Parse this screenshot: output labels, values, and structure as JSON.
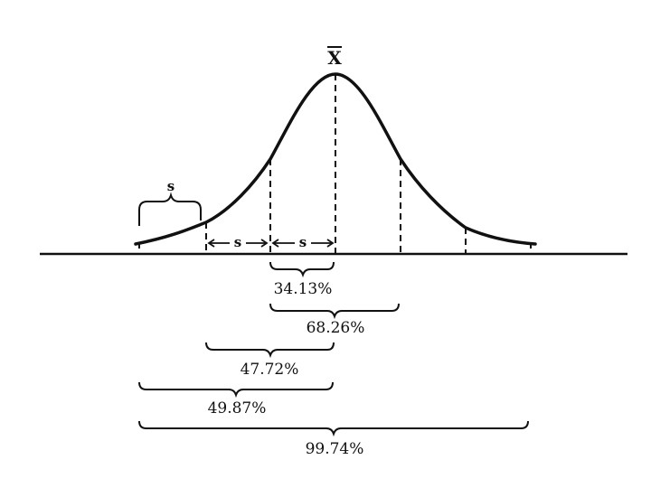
{
  "diagram": {
    "mean_label": "X",
    "sd_label": "s",
    "brace_labels": [
      "34.13%",
      "68.26%",
      "47.72%",
      "49.87%",
      "99.74%"
    ]
  },
  "colors": {
    "ink": "#111111",
    "background": "#ffffff"
  }
}
